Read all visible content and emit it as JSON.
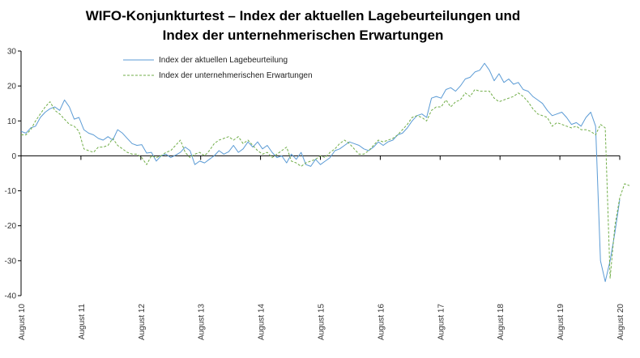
{
  "chart_data": {
    "type": "line",
    "title_lines": [
      "WIFO-Konjunkturtest – Index der aktuellen Lagebeurteilungen und",
      "Index der unternehmerischen Erwartungen"
    ],
    "xlabel": "",
    "ylabel": "",
    "ylim": [
      -40,
      30
    ],
    "y_ticks": [
      30,
      20,
      10,
      0,
      -10,
      -20,
      -30,
      -40
    ],
    "x_tick_labels": [
      "August 10",
      "August 11",
      "August 12",
      "August 13",
      "August 14",
      "August 15",
      "August 16",
      "August 17",
      "August 18",
      "August 19",
      "August 20"
    ],
    "x_start": "2010-08",
    "x_end": "2020-08",
    "legend_position": "top-center",
    "grid": false,
    "series": [
      {
        "name": "Index der aktuellen Lagebeurteilung",
        "color": "#5b9bd5",
        "dash": "solid",
        "values": [
          7,
          6.5,
          8,
          8.5,
          11,
          12.5,
          13.5,
          14,
          13,
          16,
          14,
          10.5,
          11,
          7.5,
          6.5,
          6,
          5,
          4.5,
          5.5,
          4.5,
          7.5,
          6.5,
          5,
          3.5,
          3,
          3.2,
          0.8,
          1,
          -1.5,
          0,
          0.5,
          -0.5,
          0.2,
          1,
          2.5,
          1.5,
          -2.5,
          -1.5,
          -2,
          -1,
          0,
          1.5,
          0.5,
          1.2,
          3,
          1,
          2,
          4,
          2.5,
          4,
          2,
          3,
          1,
          -0.5,
          0,
          -2,
          0.5,
          -1,
          1,
          -2.5,
          -3,
          -1,
          -2.5,
          -1.5,
          -0.5,
          1.5,
          2,
          3,
          4,
          3.5,
          3,
          2,
          1.5,
          2.5,
          4,
          3,
          4,
          4.5,
          6,
          6.5,
          8,
          10,
          11.5,
          12,
          11,
          16.5,
          17,
          16.5,
          19,
          19.5,
          18.5,
          20,
          22,
          22.5,
          24,
          24.5,
          26.5,
          24.5,
          21.5,
          23.5,
          21,
          22,
          20.5,
          21,
          19,
          18.5,
          17,
          16,
          15,
          13,
          11.5,
          12,
          12.5,
          11,
          9,
          9.5,
          8.5,
          11,
          12.5,
          8.5,
          -30,
          -36,
          -30,
          -22,
          -12.5
        ]
      },
      {
        "name": "Index der unternehmerischen Erwartungen",
        "color": "#70ad47",
        "dash": "3,2",
        "values": [
          6,
          6,
          7.5,
          10,
          12,
          14,
          15.5,
          13,
          12,
          10.5,
          9,
          8.5,
          7,
          2,
          1.5,
          1,
          2.5,
          2.5,
          3,
          5,
          3,
          2,
          1,
          0.5,
          0.5,
          -0.5,
          -2.5,
          0,
          -0.5,
          0,
          1,
          1.5,
          3,
          4.5,
          1,
          -0.5,
          0.5,
          1,
          0,
          1.5,
          3.5,
          4.5,
          5,
          5.5,
          4.5,
          5.5,
          3.5,
          4.5,
          3,
          1.5,
          0.5,
          1,
          -0.5,
          0.5,
          1.5,
          2.5,
          -1.5,
          -2,
          -3,
          -2,
          -1.5,
          -1,
          0,
          -0.5,
          1,
          2,
          3.5,
          4.5,
          3.5,
          2,
          0.5,
          0.5,
          1.5,
          3,
          4.5,
          4,
          4.5,
          5,
          6,
          7.5,
          9,
          11,
          11.5,
          11,
          10,
          13,
          14,
          14,
          16,
          14,
          15.5,
          16,
          18,
          17,
          19,
          18.5,
          18.5,
          18.5,
          16.5,
          15.5,
          16,
          16.5,
          17,
          18,
          17,
          15.5,
          13.5,
          12,
          11.5,
          11,
          8.5,
          9.5,
          9,
          8.5,
          8,
          8.5,
          7.5,
          7.5,
          7,
          6,
          9,
          8,
          -35,
          -20,
          -12,
          -8,
          -8.5
        ]
      }
    ]
  }
}
